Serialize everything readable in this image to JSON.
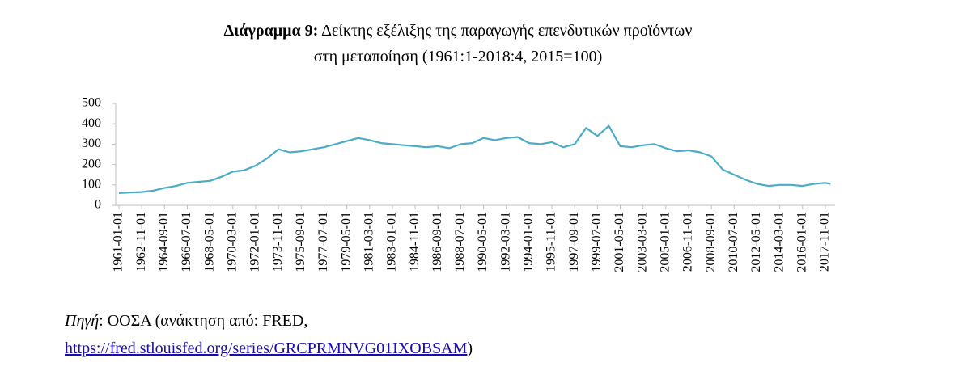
{
  "chart_data": {
    "type": "line",
    "figure_label": "Διάγραμμα 9:",
    "title": [
      "Δείκτης εξέλιξης της παραγωγής επενδυτικών προϊόντων",
      "στη μεταποίηση (1961:1-2018:4, 2015=100)"
    ],
    "x": [
      "1961-01-01",
      "1961-12-01",
      "1962-11-01",
      "1963-10-01",
      "1964-09-01",
      "1965-08-01",
      "1966-07-01",
      "1967-06-01",
      "1968-05-01",
      "1969-04-01",
      "1970-03-01",
      "1971-02-01",
      "1972-01-01",
      "1972-12-01",
      "1973-11-01",
      "1974-10-01",
      "1975-09-01",
      "1976-08-01",
      "1977-07-01",
      "1978-06-01",
      "1979-05-01",
      "1980-04-01",
      "1981-03-01",
      "1982-02-01",
      "1983-01-01",
      "1983-12-01",
      "1984-11-01",
      "1985-10-01",
      "1986-09-01",
      "1987-08-01",
      "1988-07-01",
      "1989-06-01",
      "1990-05-01",
      "1991-04-01",
      "1992-03-01",
      "1993-02-01",
      "1994-01-01",
      "1994-12-01",
      "1995-11-01",
      "1996-10-01",
      "1997-09-01",
      "1998-08-01",
      "1999-07-01",
      "2000-06-01",
      "2001-05-01",
      "2002-04-01",
      "2003-03-01",
      "2004-02-01",
      "2005-01-01",
      "2005-12-01",
      "2006-11-01",
      "2007-10-01",
      "2008-09-01",
      "2009-08-01",
      "2010-07-01",
      "2011-06-01",
      "2012-05-01",
      "2013-04-01",
      "2014-03-01",
      "2015-02-01",
      "2016-01-01",
      "2016-12-01",
      "2017-11-01",
      "2018-04-01"
    ],
    "series": [
      {
        "color": "#4bacc6",
        "values": [
          60,
          63,
          65,
          72,
          85,
          95,
          110,
          115,
          120,
          140,
          165,
          172,
          195,
          230,
          275,
          260,
          265,
          275,
          285,
          300,
          315,
          330,
          320,
          305,
          300,
          295,
          290,
          285,
          290,
          280,
          300,
          305,
          330,
          320,
          330,
          335,
          305,
          300,
          310,
          285,
          300,
          380,
          340,
          390,
          290,
          285,
          295,
          300,
          280,
          265,
          270,
          260,
          240,
          175,
          150,
          125,
          105,
          95,
          100,
          100,
          95,
          105,
          110,
          105
        ]
      }
    ],
    "xticks": [
      "1961-01-01",
      "1962-11-01",
      "1964-09-01",
      "1966-07-01",
      "1968-05-01",
      "1970-03-01",
      "1972-01-01",
      "1973-11-01",
      "1975-09-01",
      "1977-07-01",
      "1979-05-01",
      "1981-03-01",
      "1983-01-01",
      "1984-11-01",
      "1986-09-01",
      "1988-07-01",
      "1990-05-01",
      "1992-03-01",
      "1994-01-01",
      "1995-11-01",
      "1997-09-01",
      "1999-07-01",
      "2001-05-01",
      "2003-03-01",
      "2005-01-01",
      "2006-11-01",
      "2008-09-01",
      "2010-07-01",
      "2012-05-01",
      "2014-03-01",
      "2016-01-01",
      "2017-11-01"
    ],
    "ylim": [
      0,
      500
    ],
    "yticks": [
      0,
      100,
      200,
      300,
      400,
      500
    ],
    "grid": false
  },
  "source": {
    "label": "Πηγή",
    "text": ": ΟΟΣΑ (ανάκτηση από: FRED,",
    "url": "https://fred.stlouisfed.org/series/GRCPRMNVG01IXOBSAM",
    "tail": ")"
  }
}
